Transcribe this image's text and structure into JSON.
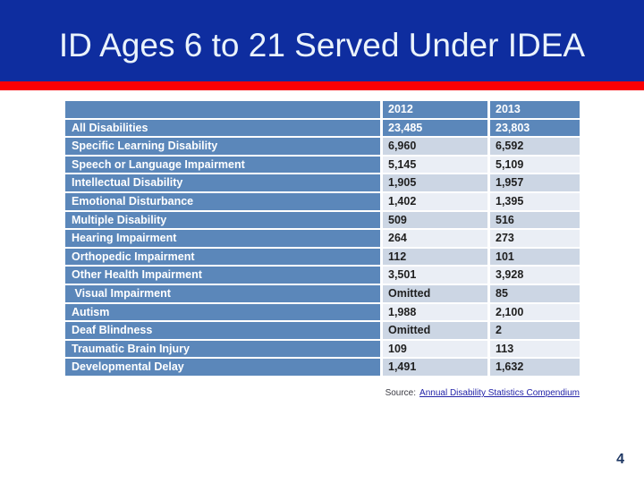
{
  "slide": {
    "title": "ID Ages 6 to 21 Served Under IDEA",
    "page_number": "4"
  },
  "table": {
    "columns": [
      "",
      "2012",
      "2013"
    ],
    "rows": [
      {
        "label": "All Disabilities",
        "values": [
          "23,485",
          "23,803"
        ]
      },
      {
        "label": "Specific Learning Disability",
        "values": [
          "6,960",
          "6,592"
        ]
      },
      {
        "label": "Speech or Language Impairment",
        "values": [
          "5,145",
          "5,109"
        ]
      },
      {
        "label": "Intellectual Disability",
        "values": [
          "1,905",
          "1,957"
        ]
      },
      {
        "label": "Emotional Disturbance",
        "values": [
          "1,402",
          "1,395"
        ]
      },
      {
        "label": "Multiple Disability",
        "values": [
          "509",
          "516"
        ]
      },
      {
        "label": "Hearing Impairment",
        "values": [
          "264",
          "273"
        ]
      },
      {
        "label": "Orthopedic Impairment",
        "values": [
          "112",
          "101"
        ]
      },
      {
        "label": "Other Health Impairment",
        "values": [
          "3,501",
          "3,928"
        ]
      },
      {
        "label": " Visual Impairment",
        "values": [
          "Omitted",
          "85"
        ]
      },
      {
        "label": "Autism",
        "values": [
          "1,988",
          "2,100"
        ]
      },
      {
        "label": "Deaf Blindness",
        "values": [
          "Omitted",
          "2"
        ]
      },
      {
        "label": "Traumatic Brain Injury",
        "values": [
          "109",
          "113"
        ]
      },
      {
        "label": "Developmental Delay",
        "values": [
          "1,491",
          "1,632"
        ]
      }
    ]
  },
  "source": {
    "prefix": "Source:",
    "link_label": "Annual Disability Statistics Compendium"
  },
  "colors": {
    "header_bg": "#0e2d9f",
    "accent_bar": "#fa0004",
    "table_blue": "#5b87ba",
    "row_alt_dark": "#ccd6e4",
    "row_alt_light": "#eaeef5",
    "link_blue": "#2424a8",
    "page_number_navy": "#1f3864"
  }
}
